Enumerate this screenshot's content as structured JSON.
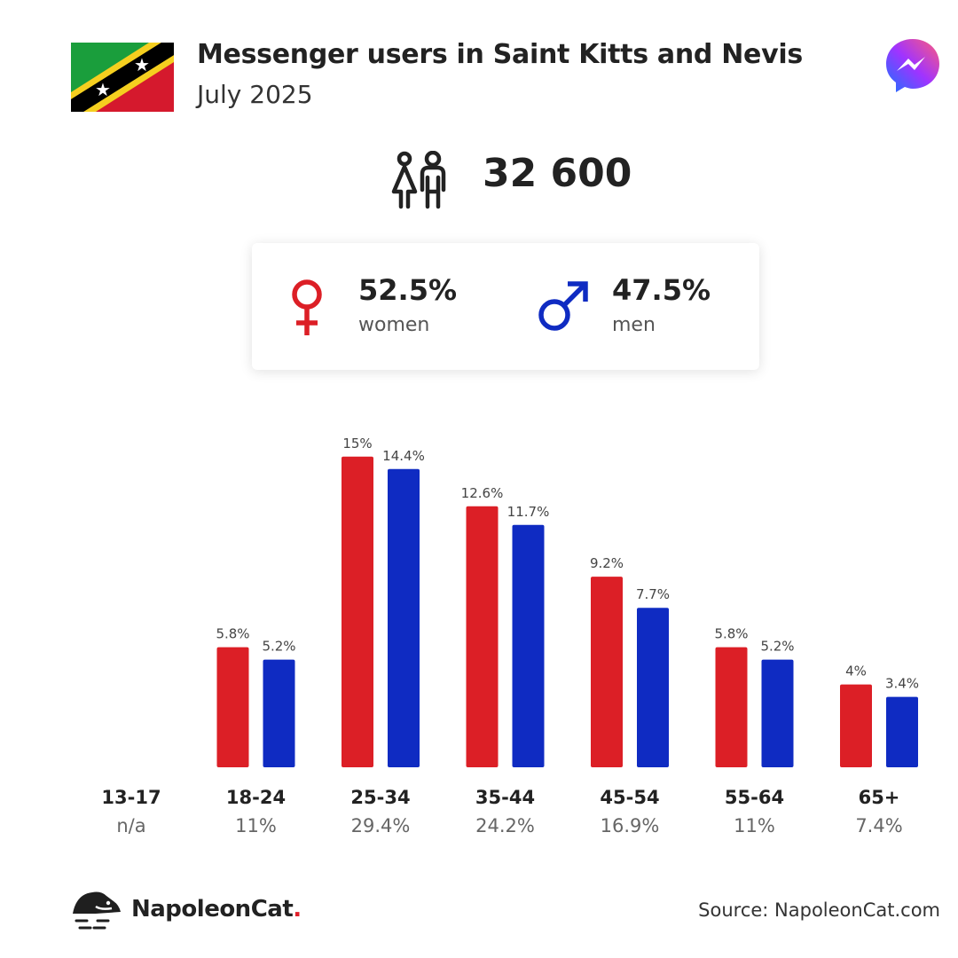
{
  "header": {
    "title": "Messenger users in Saint Kitts and Nevis",
    "subtitle": "July 2025"
  },
  "icons": {
    "flag": "saint-kitts-and-nevis-flag",
    "app": "messenger-logo-icon",
    "people": "people-icon",
    "female": "female-symbol-icon",
    "male": "male-symbol-icon",
    "brand": "napoleoncat-logo-icon"
  },
  "total_users": "32 600",
  "gender": {
    "women_pct": "52.5%",
    "women_label": "women",
    "men_pct": "47.5%",
    "men_label": "men"
  },
  "colors": {
    "women": "#dc1f26",
    "men": "#0f2bc2",
    "text": "#222222"
  },
  "chart_data": {
    "type": "bar",
    "categories": [
      "13-17",
      "18-24",
      "25-34",
      "35-44",
      "45-54",
      "55-64",
      "65+"
    ],
    "category_totals": [
      "n/a",
      "11%",
      "29.4%",
      "24.2%",
      "16.9%",
      "11%",
      "7.4%"
    ],
    "series": [
      {
        "color": "#dc1f26",
        "values": [
          null,
          5.8,
          15,
          12.6,
          9.2,
          5.8,
          4
        ],
        "labels": [
          "",
          "5.8%",
          "15%",
          "12.6%",
          "9.2%",
          "5.8%",
          "4%"
        ]
      },
      {
        "color": "#0f2bc2",
        "values": [
          null,
          5.2,
          14.4,
          11.7,
          7.7,
          5.2,
          3.4
        ],
        "labels": [
          "",
          "5.2%",
          "14.4%",
          "11.7%",
          "7.7%",
          "5.2%",
          "3.4%"
        ]
      }
    ],
    "ylim": [
      0,
      15
    ],
    "grid": false
  },
  "footer": {
    "brand_name": "NapoleonCat",
    "brand_dot": ".",
    "source": "Source: NapoleonCat.com"
  }
}
